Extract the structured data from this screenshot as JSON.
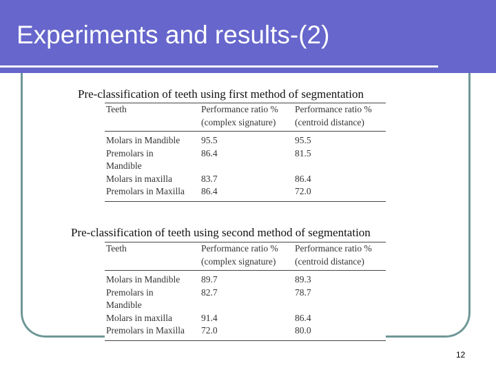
{
  "slide": {
    "title": "Experiments and results-(2)",
    "number": "12"
  },
  "tables": [
    {
      "caption": "Pre-classification of teeth using first method of segmentation",
      "headers": [
        "Teeth",
        "Performance ratio %\n(complex signature)",
        "Performance ratio %\n(centroid distance)"
      ],
      "rows": [
        {
          "teeth": "Molars in Mandible",
          "complex": "95.5",
          "centroid": "95.5"
        },
        {
          "teeth": "Premolars in\nMandible",
          "complex": "86.4",
          "centroid": "81.5"
        },
        {
          "teeth": "Molars in maxilla",
          "complex": "83.7",
          "centroid": "86.4"
        },
        {
          "teeth": "Premolars in Maxilla",
          "complex": "86.4",
          "centroid": "72.0"
        }
      ]
    },
    {
      "caption": "Pre-classification of teeth using second method of segmentation",
      "headers": [
        "Teeth",
        "Performance ratio %\n(complex signature)",
        "Performance ratio %\n(centroid distance)"
      ],
      "rows": [
        {
          "teeth": "Molars in Mandible",
          "complex": "89.7",
          "centroid": "89.3"
        },
        {
          "teeth": "Premolars in\nMandible",
          "complex": "82.7",
          "centroid": "78.7"
        },
        {
          "teeth": "Molars in maxilla",
          "complex": "91.4",
          "centroid": "86.4"
        },
        {
          "teeth": "Premolars in Maxilla",
          "complex": "72.0",
          "centroid": "80.0"
        }
      ]
    }
  ]
}
